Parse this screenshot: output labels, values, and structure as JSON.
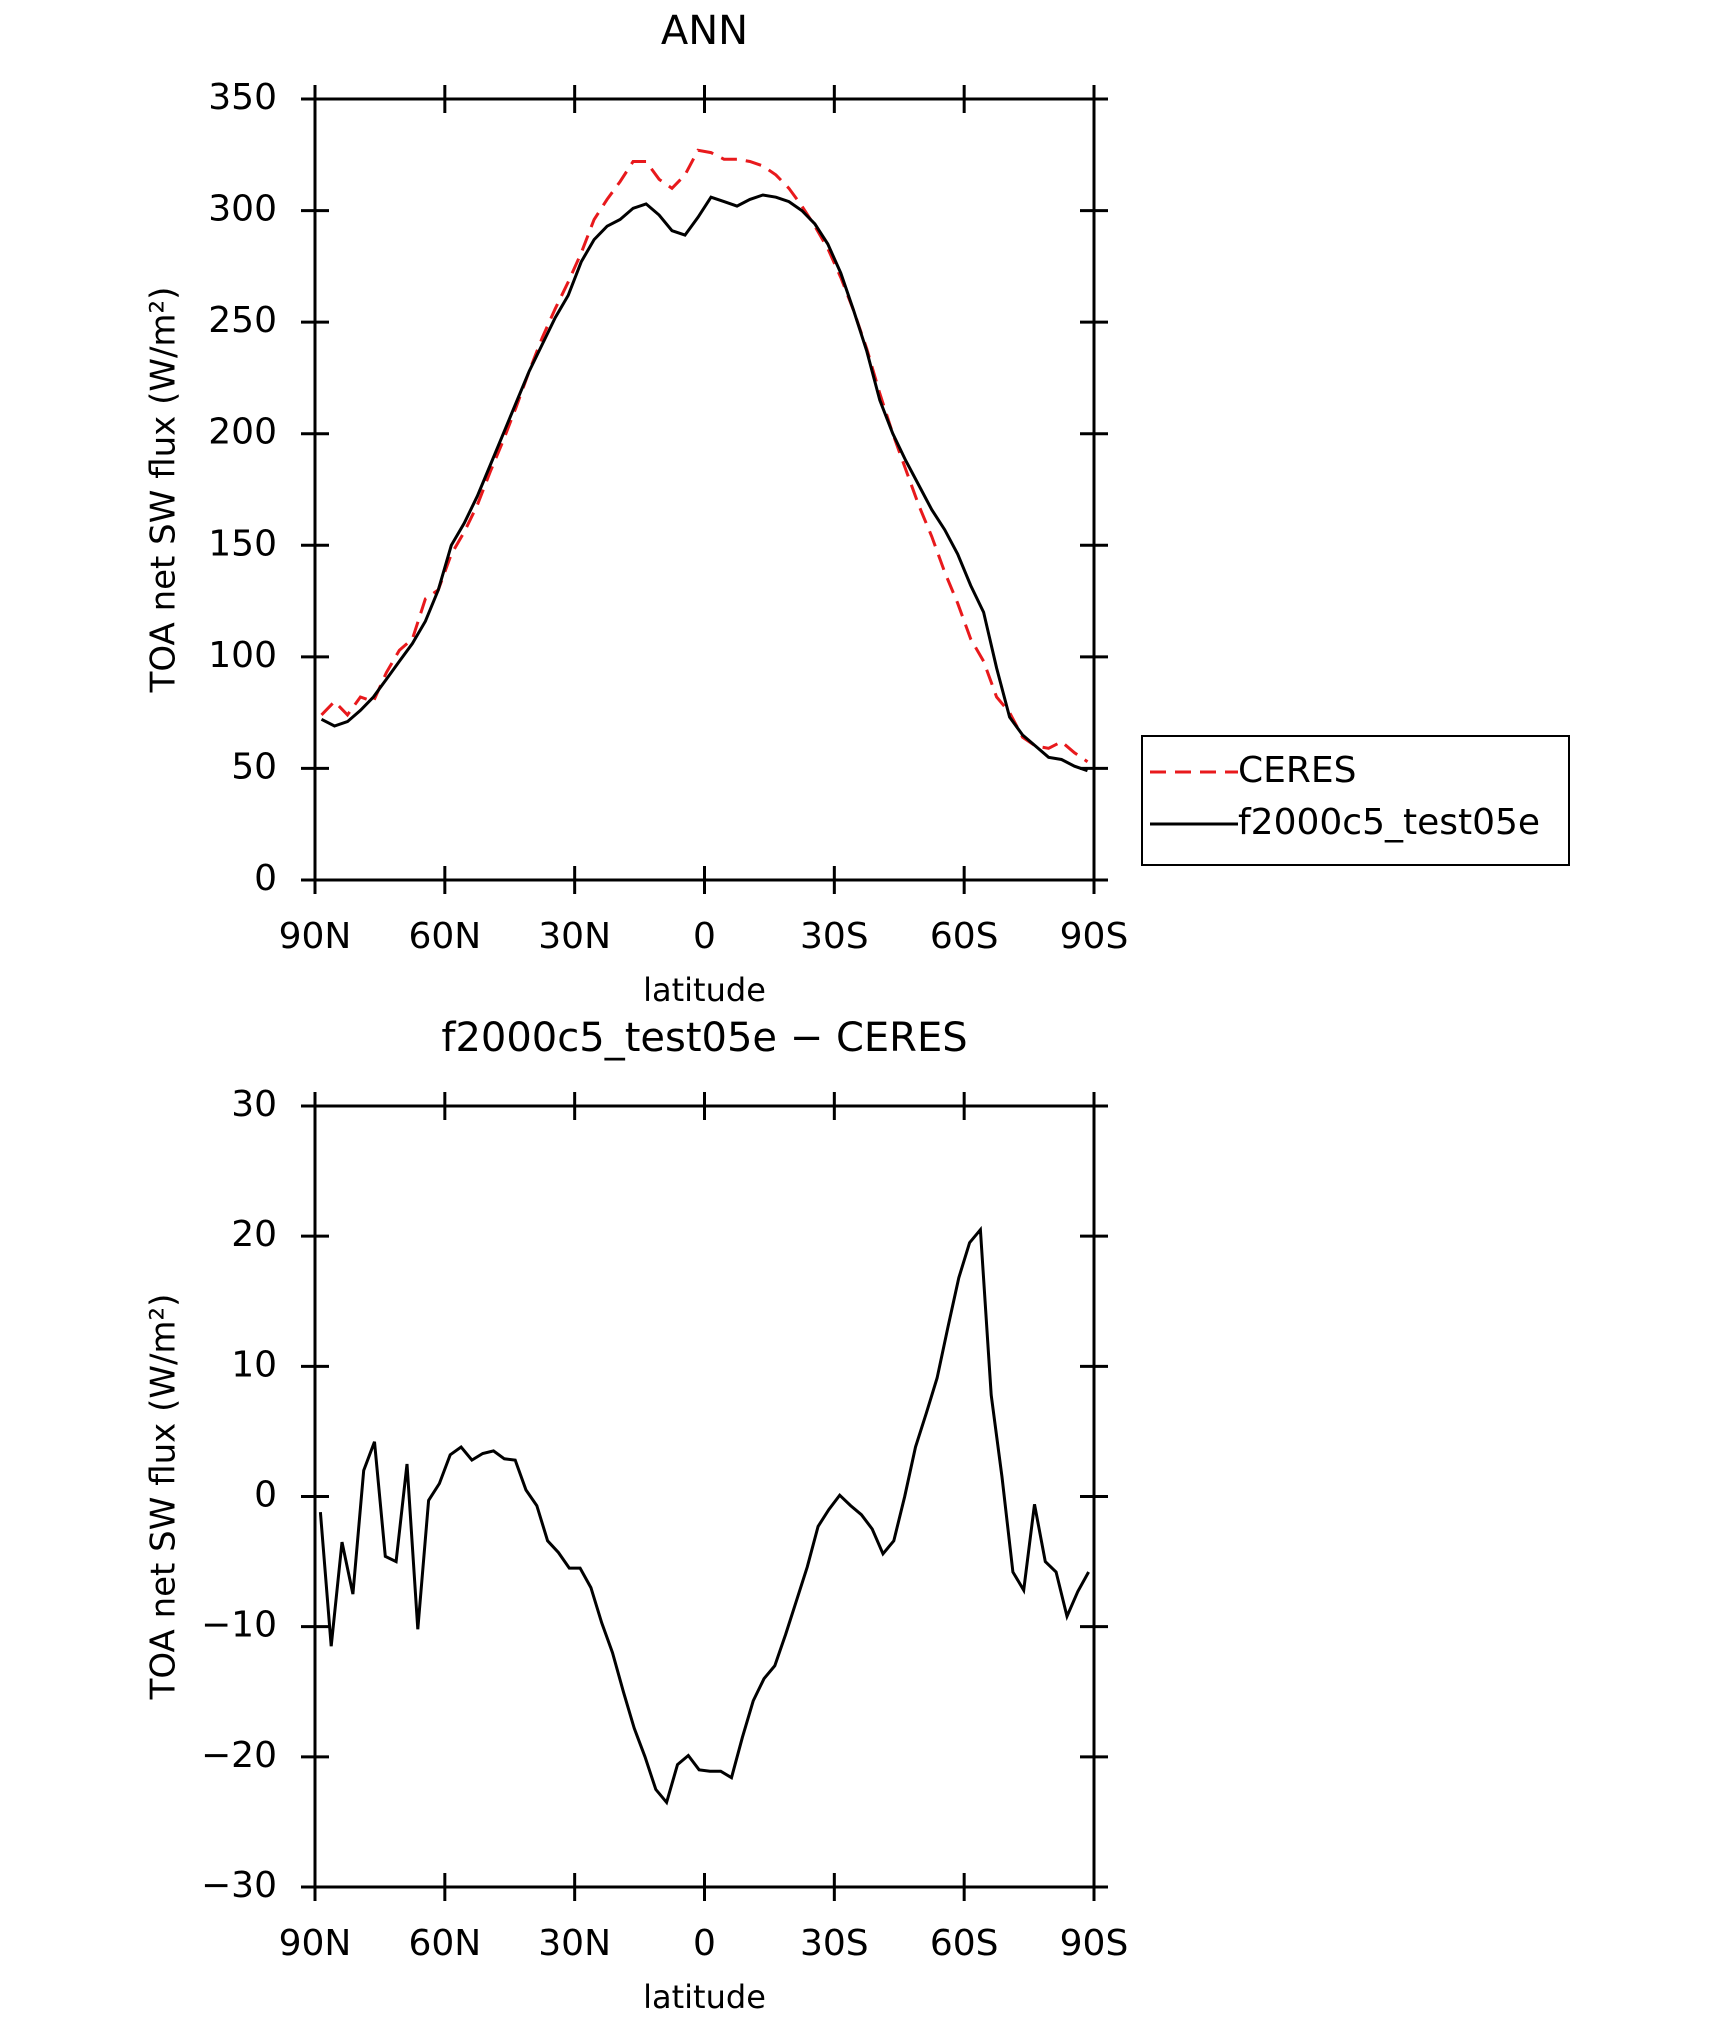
{
  "chart_data": [
    {
      "type": "line",
      "title": "ANN",
      "x_label": "latitude",
      "y_label": "TOA net SW flux (W/m²)",
      "xlim": [
        90,
        -90
      ],
      "xticks": [
        {
          "value": 90,
          "label": "90N"
        },
        {
          "value": 60,
          "label": "60N"
        },
        {
          "value": 30,
          "label": "30N"
        },
        0,
        {
          "value": -30,
          "label": "30S"
        },
        {
          "value": -60,
          "label": "60S"
        },
        {
          "value": -90,
          "label": "90S"
        }
      ],
      "ylim": [
        0,
        350
      ],
      "yticks": [
        0,
        50,
        100,
        150,
        200,
        250,
        300,
        350
      ],
      "legend": "right",
      "x": [
        88.5,
        85.5,
        82.5,
        79.5,
        76.5,
        73.5,
        70.5,
        67.5,
        64.5,
        61.5,
        58.5,
        55.5,
        52.5,
        49.5,
        46.5,
        43.5,
        40.5,
        37.5,
        34.5,
        31.5,
        28.5,
        25.5,
        22.5,
        19.5,
        16.5,
        13.5,
        10.5,
        7.5,
        4.5,
        1.5,
        -1.5,
        -4.5,
        -7.5,
        -10.5,
        -13.5,
        -16.5,
        -19.5,
        -22.5,
        -25.5,
        -28.5,
        -31.5,
        -34.5,
        -37.5,
        -40.5,
        -43.5,
        -46.5,
        -49.5,
        -52.5,
        -55.5,
        -58.5,
        -61.5,
        -64.5,
        -67.5,
        -70.5,
        -73.5,
        -76.5,
        -79.5,
        -82.5,
        -85.5,
        -88.5
      ],
      "series": [
        {
          "name": "CERES",
          "color": "#e8191c",
          "linestyle": "dashed",
          "values": [
            74,
            80,
            74,
            82,
            80,
            93,
            103,
            108,
            126,
            130,
            146,
            156,
            168,
            183,
            197,
            212,
            228,
            243,
            256,
            268,
            281,
            296,
            305,
            313,
            322,
            322,
            314,
            310,
            316,
            327,
            326,
            323,
            323,
            322,
            320,
            316,
            310,
            302,
            293,
            283,
            270,
            255,
            238,
            218,
            200,
            184,
            168,
            154,
            138,
            124,
            108,
            98,
            82,
            75,
            64,
            60,
            59,
            62,
            57,
            53
          ]
        },
        {
          "name": "f2000c5_test05e",
          "color": "#000000",
          "linestyle": "solid",
          "values": [
            72,
            69,
            71,
            76,
            82,
            90,
            98,
            106,
            116,
            130,
            150,
            160,
            172,
            186,
            200,
            214,
            228,
            240,
            252,
            262,
            277,
            287,
            293,
            296,
            301,
            303,
            298,
            291,
            289,
            297,
            306,
            304,
            302,
            305,
            307,
            306,
            304,
            300,
            294,
            285,
            272,
            255,
            237,
            215,
            200,
            188,
            177,
            166,
            157,
            146,
            132,
            120,
            95,
            73,
            65,
            60,
            55,
            54,
            51,
            49
          ]
        }
      ]
    },
    {
      "type": "line",
      "title": "f2000c5_test05e − CERES",
      "x_label": "latitude",
      "y_label": "TOA net SW flux (W/m²)",
      "xlim": [
        90,
        -90
      ],
      "xticks": [
        {
          "value": 90,
          "label": "90N"
        },
        {
          "value": 60,
          "label": "60N"
        },
        {
          "value": 30,
          "label": "30N"
        },
        0,
        {
          "value": -30,
          "label": "30S"
        },
        {
          "value": -60,
          "label": "60S"
        },
        {
          "value": -90,
          "label": "90S"
        }
      ],
      "ylim": [
        -30,
        30
      ],
      "yticks": [
        {
          "value": -30,
          "label": "−30"
        },
        {
          "value": -20,
          "label": "−20"
        },
        {
          "value": -10,
          "label": "−10"
        },
        0,
        10,
        20,
        30
      ],
      "x": [
        88.75,
        86.25,
        83.75,
        81.25,
        78.75,
        76.25,
        73.75,
        71.25,
        68.75,
        66.25,
        63.75,
        61.25,
        58.75,
        56.25,
        53.75,
        51.25,
        48.75,
        46.25,
        43.75,
        41.25,
        38.75,
        36.25,
        33.75,
        31.25,
        28.75,
        26.25,
        23.75,
        21.25,
        18.75,
        16.25,
        13.75,
        11.25,
        8.75,
        6.25,
        3.75,
        1.25,
        -1.25,
        -3.75,
        -6.25,
        -8.75,
        -11.25,
        -13.75,
        -16.25,
        -18.75,
        -21.25,
        -23.75,
        -26.25,
        -28.75,
        -31.25,
        -33.75,
        -36.25,
        -38.75,
        -41.25,
        -43.75,
        -46.25,
        -48.75,
        -51.25,
        -53.75,
        -56.25,
        -58.75,
        -61.25,
        -63.75,
        -66.25,
        -68.75,
        -71.25,
        -73.75,
        -76.25,
        -78.75,
        -81.25,
        -83.75,
        -86.25,
        -88.75
      ],
      "series": [
        {
          "color": "#000000",
          "linestyle": "solid",
          "values": [
            -1.2,
            -11.5,
            -3.5,
            -7.5,
            2,
            4.2,
            -4.6,
            -5,
            2.5,
            -10.2,
            -0.3,
            1,
            3.2,
            3.8,
            2.8,
            3.3,
            3.5,
            2.9,
            2.8,
            0.5,
            -0.7,
            -3.4,
            -4.3,
            -5.5,
            -5.5,
            -7,
            -9.7,
            -12,
            -15,
            -17.8,
            -20,
            -22.5,
            -23.5,
            -20.6,
            -19.9,
            -21,
            -21.1,
            -21.1,
            -21.6,
            -18.5,
            -15.7,
            -14,
            -13,
            -10.6,
            -8,
            -5.4,
            -2.3,
            -1,
            0.1,
            -0.7,
            -1.4,
            -2.5,
            -4.4,
            -3.4,
            0,
            3.8,
            6.4,
            9.1,
            13,
            16.8,
            19.5,
            20.5,
            7.8,
            1.5,
            -5.8,
            -7.2,
            -0.6,
            -5,
            -5.8,
            -9.2,
            -7.3,
            -5.8
          ]
        }
      ]
    }
  ]
}
